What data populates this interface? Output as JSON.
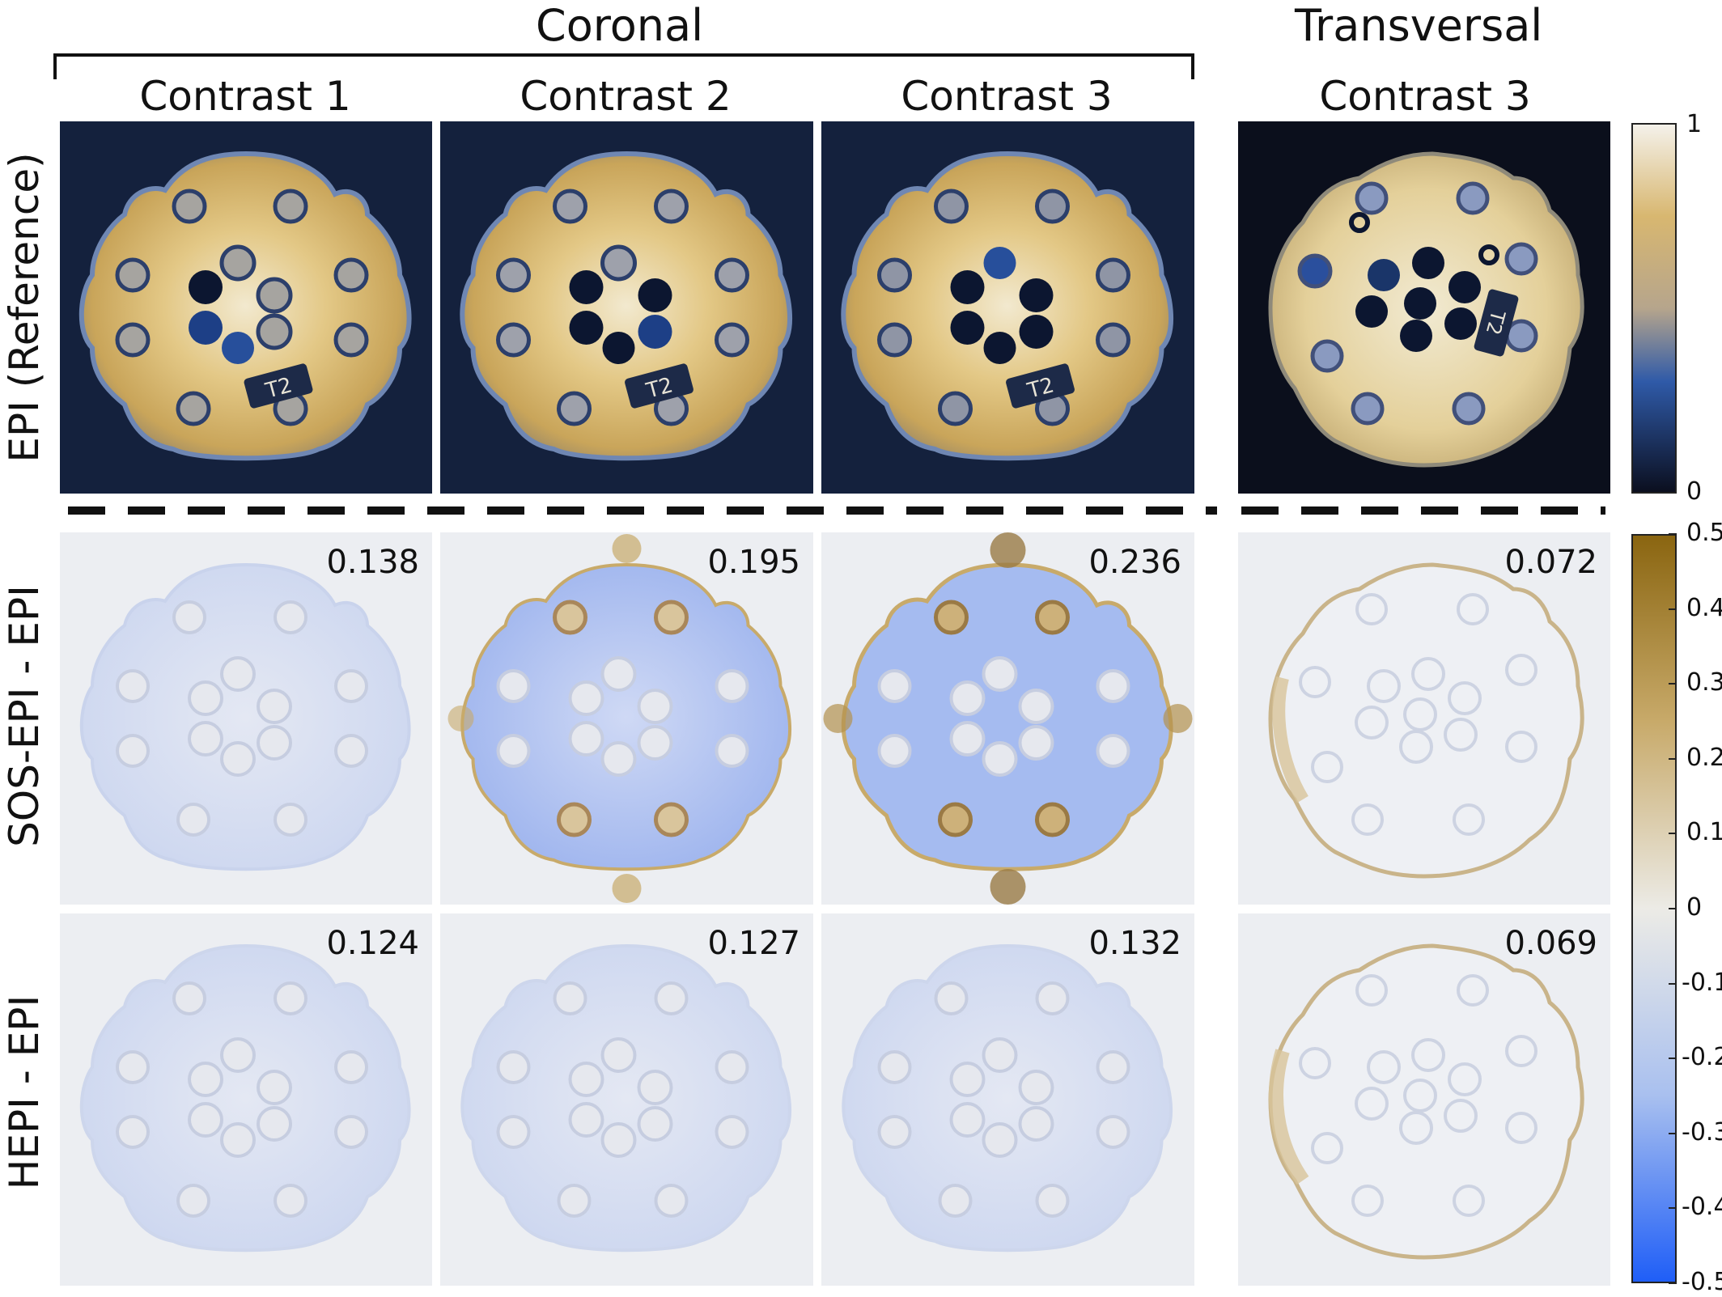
{
  "headers": {
    "coronal": "Coronal",
    "transversal": "Transversal"
  },
  "columns": [
    "Contrast 1",
    "Contrast 2",
    "Contrast 3",
    "Contrast 3"
  ],
  "rows": [
    "EPI (Reference)",
    "SOS-EPI - EPI",
    "HEPI - EPI"
  ],
  "values": {
    "sos": [
      "0.138",
      "0.195",
      "0.236",
      "0.072"
    ],
    "hepi": [
      "0.124",
      "0.127",
      "0.132",
      "0.069"
    ]
  },
  "colorbar_reference": {
    "ticks": [
      "1",
      "0"
    ],
    "colors": [
      "#0b0f1f",
      "#2f5aa8",
      "#b6a58c",
      "#d8b770",
      "#f4f1ea"
    ]
  },
  "colorbar_difference": {
    "ticks": [
      "0.5",
      "0.4",
      "0.3",
      "0.2",
      "0.1",
      "0",
      "-0.1",
      "-0.2",
      "-0.3",
      "-0.4",
      "-0.5"
    ],
    "colors": [
      "#8a6510",
      "#c8aa6a",
      "#ecebe6",
      "#a9c0ef",
      "#1f5ef7"
    ]
  },
  "phantom_label": "T2"
}
